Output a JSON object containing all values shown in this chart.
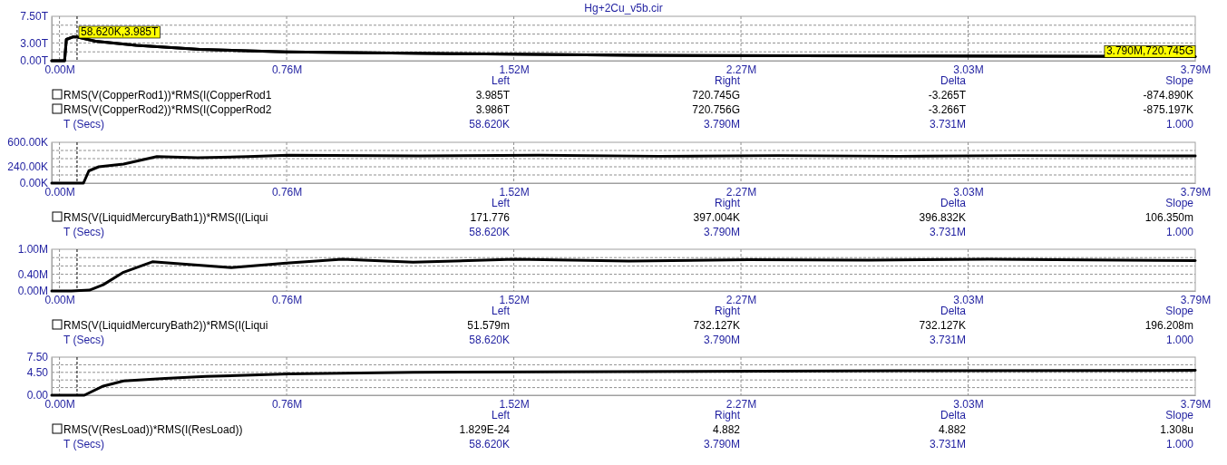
{
  "chart_data": [
    {
      "type": "line",
      "title": "Hg+2Cu_v5b.cir",
      "grid": true,
      "legend": "bottom",
      "line_style": "solid",
      "marker": "none",
      "xlim": [
        -26000,
        3790000
      ],
      "xticks": [
        {
          "value": 0,
          "label": "0.00M"
        },
        {
          "value": 758000,
          "label": "0.76M"
        },
        {
          "value": 1516000,
          "label": "1.52M"
        },
        {
          "value": 2274000,
          "label": "2.27M"
        },
        {
          "value": 3032000,
          "label": "3.03M"
        },
        {
          "value": 3790000,
          "label": "3.79M"
        }
      ],
      "ylim": [
        0,
        7500000000000.0
      ],
      "yticks": [
        {
          "value": 0,
          "label": "0.00T"
        },
        {
          "value": 1500000000000.0,
          "label": null
        },
        {
          "value": 3000000000000.0,
          "label": "3.00T"
        },
        {
          "value": 4500000000000.0,
          "label": null
        },
        {
          "value": 6000000000000.0,
          "label": null
        },
        {
          "value": 7500000000000.0,
          "label": "7.50T"
        }
      ],
      "ref_lines": [
        {
          "axis": "x",
          "value": 58620,
          "color": "#000000",
          "line_style": "dashed"
        }
      ],
      "series": [
        {
          "name": "RMS(V(CopperRod1))*RMS(I(CopperRod1",
          "color": "#000000",
          "x": [
            -26000,
            17000,
            23000,
            44000,
            58620,
            120000,
            256000,
            468000,
            755000,
            1315000,
            1920000,
            2830000,
            3790000
          ],
          "values": [
            0,
            0,
            3600000000000.0,
            4000000000000.0,
            4000000000000.0,
            3300000000000.0,
            2600000000000.0,
            1900000000000.0,
            1500000000000.0,
            1200000000000.0,
            900000000000.0,
            800000000000.0,
            700000000000.0
          ]
        },
        {
          "name": "RMS(V(CopperRod2))*RMS(I(CopperRod2",
          "color": "#000000",
          "x": [
            -26000,
            17000,
            23000,
            44000,
            58620,
            120000,
            256000,
            468000,
            755000,
            1315000,
            1920000,
            2830000,
            3790000
          ],
          "values": [
            0,
            0,
            3600000000000.0,
            4000000000000.0,
            4000000000000.0,
            3300000000000.0,
            2600000000000.0,
            1900000000000.0,
            1500000000000.0,
            1200000000000.0,
            900000000000.0,
            800000000000.0,
            700000000000.0
          ]
        }
      ],
      "annotations": [
        {
          "text": "58.620K,3.985T",
          "x": 58620,
          "y": 3985000000000.0
        },
        {
          "text": "3.790M,720.745G",
          "x": 3790000,
          "y": 720745000000.0
        },
        "Left",
        "Right",
        "Delta",
        "Slope",
        "3.985T",
        "720.745G",
        "-3.265T",
        "-874.890K",
        "3.986T",
        "720.756G",
        "-3.266T",
        "-875.197K",
        "T (Secs)",
        "58.620K",
        "3.790M",
        "3.731M",
        "1.000"
      ]
    },
    {
      "type": "line",
      "grid": true,
      "legend": "bottom",
      "line_style": "solid",
      "marker": "none",
      "xlim": [
        -26000,
        3790000
      ],
      "xticks": [
        {
          "value": 0,
          "label": "0.00M"
        },
        {
          "value": 758000,
          "label": "0.76M"
        },
        {
          "value": 1516000,
          "label": "1.52M"
        },
        {
          "value": 2274000,
          "label": "2.27M"
        },
        {
          "value": 3032000,
          "label": "3.03M"
        },
        {
          "value": 3790000,
          "label": "3.79M"
        }
      ],
      "ylim": [
        0,
        600000
      ],
      "yticks": [
        {
          "value": 0,
          "label": "0.00K"
        },
        {
          "value": 120000,
          "label": null
        },
        {
          "value": 240000,
          "label": "240.00K"
        },
        {
          "value": 360000,
          "label": null
        },
        {
          "value": 480000,
          "label": null
        },
        {
          "value": 600000,
          "label": "600.00K"
        }
      ],
      "ref_lines": [
        {
          "axis": "x",
          "value": 58620,
          "color": "#000000",
          "line_style": "dashed"
        }
      ],
      "series": [
        {
          "name": "RMS(V(LiquidMercuryBath1))*RMS(I(Liqui",
          "color": "#000000",
          "x": [
            -26000,
            80000,
            98000,
            131000,
            214000,
            325000,
            461000,
            628000,
            764000,
            1200000,
            1600000,
            2000000,
            2400000,
            2800000,
            3200000,
            3790000
          ],
          "values": [
            0,
            0,
            180000,
            240000,
            280000,
            390000,
            373000,
            390000,
            410000,
            400000,
            410000,
            395000,
            405000,
            395000,
            405000,
            400000
          ]
        }
      ],
      "annotations": [
        "Left",
        "Right",
        "Delta",
        "Slope",
        "171.776",
        "397.004K",
        "396.832K",
        "106.350m",
        "T (Secs)",
        "58.620K",
        "3.790M",
        "3.731M",
        "1.000"
      ]
    },
    {
      "type": "line",
      "grid": true,
      "legend": "bottom",
      "line_style": "solid",
      "marker": "none",
      "xlim": [
        -26000,
        3790000
      ],
      "xticks": [
        {
          "value": 0,
          "label": "0.00M"
        },
        {
          "value": 758000,
          "label": "0.76M"
        },
        {
          "value": 1516000,
          "label": "1.52M"
        },
        {
          "value": 2274000,
          "label": "2.27M"
        },
        {
          "value": 3032000,
          "label": "3.03M"
        },
        {
          "value": 3790000,
          "label": "3.79M"
        }
      ],
      "ylim": [
        0,
        1000000
      ],
      "yticks": [
        {
          "value": 0,
          "label": "0.00M"
        },
        {
          "value": 200000,
          "label": null
        },
        {
          "value": 400000,
          "label": "0.40M"
        },
        {
          "value": 600000,
          "label": null
        },
        {
          "value": 800000,
          "label": null
        },
        {
          "value": 1000000,
          "label": "1.00M"
        }
      ],
      "ref_lines": [
        {
          "axis": "x",
          "value": 58620,
          "color": "#000000",
          "line_style": "dashed"
        }
      ],
      "series": [
        {
          "name": "RMS(V(LiquidMercuryBath2))*RMS(I(Liqui",
          "color": "#000000",
          "x": [
            -26000,
            40000,
            100000,
            146000,
            214000,
            310000,
            573000,
            757000,
            943000,
            1180000,
            1520000,
            1900000,
            2300000,
            2700000,
            3100000,
            3790000
          ],
          "values": [
            0,
            0,
            20000,
            150000,
            450000,
            700000,
            560000,
            670000,
            760000,
            690000,
            760000,
            720000,
            750000,
            740000,
            760000,
            730000
          ]
        }
      ],
      "annotations": [
        "Left",
        "Right",
        "Delta",
        "Slope",
        "51.579m",
        "732.127K",
        "732.127K",
        "196.208m",
        "T (Secs)",
        "58.620K",
        "3.790M",
        "3.731M",
        "1.000"
      ]
    },
    {
      "type": "line",
      "grid": true,
      "legend": "bottom",
      "line_style": "solid",
      "marker": "none",
      "xlim": [
        -26000,
        3790000
      ],
      "xticks": [
        {
          "value": 0,
          "label": "0.00M"
        },
        {
          "value": 758000,
          "label": "0.76M"
        },
        {
          "value": 1516000,
          "label": "1.52M"
        },
        {
          "value": 2274000,
          "label": "2.27M"
        },
        {
          "value": 3032000,
          "label": "3.03M"
        },
        {
          "value": 3790000,
          "label": "3.79M"
        }
      ],
      "ylim": [
        0,
        7.5
      ],
      "yticks": [
        {
          "value": 0,
          "label": "0.00"
        },
        {
          "value": 1.5,
          "label": null
        },
        {
          "value": 3,
          "label": null
        },
        {
          "value": 4.5,
          "label": "4.50"
        },
        {
          "value": 6,
          "label": null
        },
        {
          "value": 7.5,
          "label": "7.50"
        }
      ],
      "ref_lines": [
        {
          "axis": "x",
          "value": 58620,
          "color": "#000000",
          "line_style": "dashed"
        }
      ],
      "series": [
        {
          "name": "RMS(V(ResLoad))*RMS(I(ResLoad))",
          "color": "#000000",
          "x": [
            -26000,
            83000,
            146000,
            214000,
            352000,
            489000,
            765000,
            1180000,
            1870000,
            2800000,
            3790000
          ],
          "values": [
            0,
            0,
            1.8,
            2.8,
            3.3,
            3.7,
            4.2,
            4.5,
            4.65,
            4.8,
            4.9
          ]
        }
      ],
      "annotations": [
        "Left",
        "Right",
        "Delta",
        "Slope",
        "1.829E-24",
        "4.882",
        "4.882",
        "1.308u",
        "T (Secs)",
        "58.620K",
        "3.790M",
        "3.731M",
        "1.000"
      ]
    }
  ]
}
